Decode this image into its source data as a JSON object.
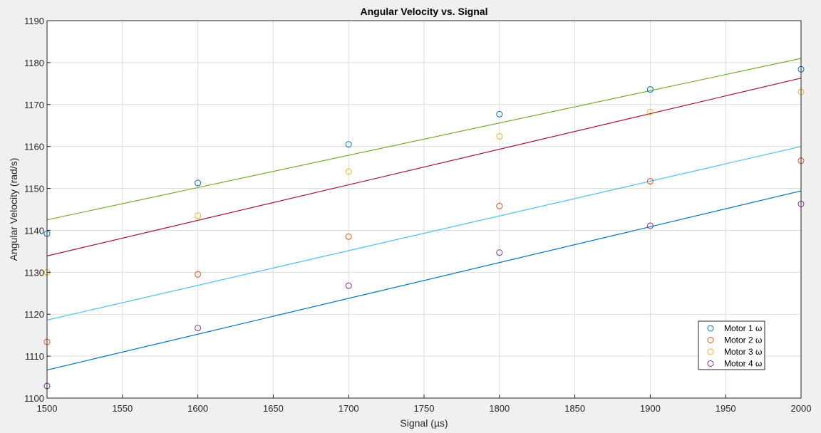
{
  "chart_data": {
    "type": "scatter",
    "title": "Angular Velocity vs. Signal",
    "xlabel": "Signal (µs)",
    "ylabel": "Angular Velocity (rad/s)",
    "xlim": [
      1500,
      2000
    ],
    "ylim": [
      1100,
      1190
    ],
    "xticks": [
      1500,
      1550,
      1600,
      1650,
      1700,
      1750,
      1800,
      1850,
      1900,
      1950,
      2000
    ],
    "yticks": [
      1100,
      1110,
      1120,
      1130,
      1140,
      1150,
      1160,
      1170,
      1180,
      1190
    ],
    "grid": true,
    "legend_position": "bottom-right",
    "x": [
      1500,
      1600,
      1700,
      1800,
      1900,
      2000
    ],
    "series": [
      {
        "name": "Motor 1 ω",
        "color": "#0072bd",
        "marker": "circle",
        "values": [
          1139.2,
          1151.3,
          1160.5,
          1167.7,
          1173.6,
          1178.4
        ]
      },
      {
        "name": "Motor 2 ω",
        "color": "#d95319",
        "marker": "circle",
        "values": [
          1113.4,
          1129.5,
          1138.5,
          1145.8,
          1151.7,
          1156.6
        ]
      },
      {
        "name": "Motor 3 ω",
        "color": "#edb120",
        "marker": "circle",
        "values": [
          1130.0,
          1143.5,
          1154.0,
          1162.4,
          1168.2,
          1173.0
        ]
      },
      {
        "name": "Motor 4 ω",
        "color": "#7e2f8e",
        "marker": "circle",
        "values": [
          1102.9,
          1116.7,
          1126.8,
          1134.7,
          1141.1,
          1146.3
        ]
      }
    ],
    "fit_lines": [
      {
        "color": "#77ac30",
        "y": [
          1142.5,
          1181.0
        ]
      },
      {
        "color": "#a2142f",
        "y": [
          1133.9,
          1176.3
        ]
      },
      {
        "color": "#4dbeee",
        "y": [
          1118.6,
          1160.0
        ]
      },
      {
        "color": "#0072bd",
        "y": [
          1106.7,
          1149.4
        ]
      }
    ]
  }
}
